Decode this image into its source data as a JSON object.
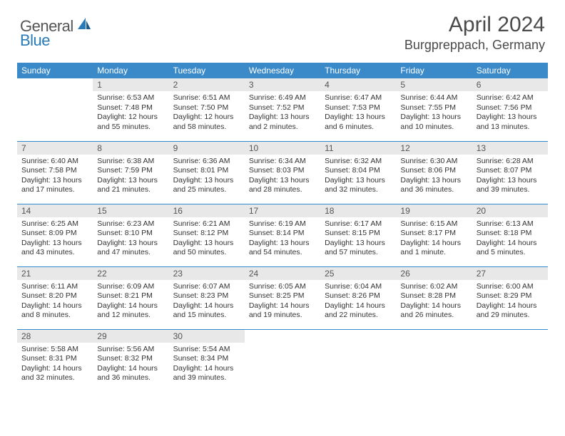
{
  "logo": {
    "general": "General",
    "blue": "Blue"
  },
  "title": "April 2024",
  "location": "Burgpreppach, Germany",
  "colors": {
    "header_bg": "#3a8ac9",
    "header_text": "#ffffff",
    "daynum_bg": "#e8e8e8",
    "border": "#3a8ac9",
    "logo_blue": "#2a7ab8",
    "text": "#333333"
  },
  "weekdays": [
    "Sunday",
    "Monday",
    "Tuesday",
    "Wednesday",
    "Thursday",
    "Friday",
    "Saturday"
  ],
  "weeks": [
    [
      {
        "num": "",
        "lines": []
      },
      {
        "num": "1",
        "lines": [
          "Sunrise: 6:53 AM",
          "Sunset: 7:48 PM",
          "Daylight: 12 hours",
          "and 55 minutes."
        ]
      },
      {
        "num": "2",
        "lines": [
          "Sunrise: 6:51 AM",
          "Sunset: 7:50 PM",
          "Daylight: 12 hours",
          "and 58 minutes."
        ]
      },
      {
        "num": "3",
        "lines": [
          "Sunrise: 6:49 AM",
          "Sunset: 7:52 PM",
          "Daylight: 13 hours",
          "and 2 minutes."
        ]
      },
      {
        "num": "4",
        "lines": [
          "Sunrise: 6:47 AM",
          "Sunset: 7:53 PM",
          "Daylight: 13 hours",
          "and 6 minutes."
        ]
      },
      {
        "num": "5",
        "lines": [
          "Sunrise: 6:44 AM",
          "Sunset: 7:55 PM",
          "Daylight: 13 hours",
          "and 10 minutes."
        ]
      },
      {
        "num": "6",
        "lines": [
          "Sunrise: 6:42 AM",
          "Sunset: 7:56 PM",
          "Daylight: 13 hours",
          "and 13 minutes."
        ]
      }
    ],
    [
      {
        "num": "7",
        "lines": [
          "Sunrise: 6:40 AM",
          "Sunset: 7:58 PM",
          "Daylight: 13 hours",
          "and 17 minutes."
        ]
      },
      {
        "num": "8",
        "lines": [
          "Sunrise: 6:38 AM",
          "Sunset: 7:59 PM",
          "Daylight: 13 hours",
          "and 21 minutes."
        ]
      },
      {
        "num": "9",
        "lines": [
          "Sunrise: 6:36 AM",
          "Sunset: 8:01 PM",
          "Daylight: 13 hours",
          "and 25 minutes."
        ]
      },
      {
        "num": "10",
        "lines": [
          "Sunrise: 6:34 AM",
          "Sunset: 8:03 PM",
          "Daylight: 13 hours",
          "and 28 minutes."
        ]
      },
      {
        "num": "11",
        "lines": [
          "Sunrise: 6:32 AM",
          "Sunset: 8:04 PM",
          "Daylight: 13 hours",
          "and 32 minutes."
        ]
      },
      {
        "num": "12",
        "lines": [
          "Sunrise: 6:30 AM",
          "Sunset: 8:06 PM",
          "Daylight: 13 hours",
          "and 36 minutes."
        ]
      },
      {
        "num": "13",
        "lines": [
          "Sunrise: 6:28 AM",
          "Sunset: 8:07 PM",
          "Daylight: 13 hours",
          "and 39 minutes."
        ]
      }
    ],
    [
      {
        "num": "14",
        "lines": [
          "Sunrise: 6:25 AM",
          "Sunset: 8:09 PM",
          "Daylight: 13 hours",
          "and 43 minutes."
        ]
      },
      {
        "num": "15",
        "lines": [
          "Sunrise: 6:23 AM",
          "Sunset: 8:10 PM",
          "Daylight: 13 hours",
          "and 47 minutes."
        ]
      },
      {
        "num": "16",
        "lines": [
          "Sunrise: 6:21 AM",
          "Sunset: 8:12 PM",
          "Daylight: 13 hours",
          "and 50 minutes."
        ]
      },
      {
        "num": "17",
        "lines": [
          "Sunrise: 6:19 AM",
          "Sunset: 8:14 PM",
          "Daylight: 13 hours",
          "and 54 minutes."
        ]
      },
      {
        "num": "18",
        "lines": [
          "Sunrise: 6:17 AM",
          "Sunset: 8:15 PM",
          "Daylight: 13 hours",
          "and 57 minutes."
        ]
      },
      {
        "num": "19",
        "lines": [
          "Sunrise: 6:15 AM",
          "Sunset: 8:17 PM",
          "Daylight: 14 hours",
          "and 1 minute."
        ]
      },
      {
        "num": "20",
        "lines": [
          "Sunrise: 6:13 AM",
          "Sunset: 8:18 PM",
          "Daylight: 14 hours",
          "and 5 minutes."
        ]
      }
    ],
    [
      {
        "num": "21",
        "lines": [
          "Sunrise: 6:11 AM",
          "Sunset: 8:20 PM",
          "Daylight: 14 hours",
          "and 8 minutes."
        ]
      },
      {
        "num": "22",
        "lines": [
          "Sunrise: 6:09 AM",
          "Sunset: 8:21 PM",
          "Daylight: 14 hours",
          "and 12 minutes."
        ]
      },
      {
        "num": "23",
        "lines": [
          "Sunrise: 6:07 AM",
          "Sunset: 8:23 PM",
          "Daylight: 14 hours",
          "and 15 minutes."
        ]
      },
      {
        "num": "24",
        "lines": [
          "Sunrise: 6:05 AM",
          "Sunset: 8:25 PM",
          "Daylight: 14 hours",
          "and 19 minutes."
        ]
      },
      {
        "num": "25",
        "lines": [
          "Sunrise: 6:04 AM",
          "Sunset: 8:26 PM",
          "Daylight: 14 hours",
          "and 22 minutes."
        ]
      },
      {
        "num": "26",
        "lines": [
          "Sunrise: 6:02 AM",
          "Sunset: 8:28 PM",
          "Daylight: 14 hours",
          "and 26 minutes."
        ]
      },
      {
        "num": "27",
        "lines": [
          "Sunrise: 6:00 AM",
          "Sunset: 8:29 PM",
          "Daylight: 14 hours",
          "and 29 minutes."
        ]
      }
    ],
    [
      {
        "num": "28",
        "lines": [
          "Sunrise: 5:58 AM",
          "Sunset: 8:31 PM",
          "Daylight: 14 hours",
          "and 32 minutes."
        ]
      },
      {
        "num": "29",
        "lines": [
          "Sunrise: 5:56 AM",
          "Sunset: 8:32 PM",
          "Daylight: 14 hours",
          "and 36 minutes."
        ]
      },
      {
        "num": "30",
        "lines": [
          "Sunrise: 5:54 AM",
          "Sunset: 8:34 PM",
          "Daylight: 14 hours",
          "and 39 minutes."
        ]
      },
      {
        "num": "",
        "lines": []
      },
      {
        "num": "",
        "lines": []
      },
      {
        "num": "",
        "lines": []
      },
      {
        "num": "",
        "lines": []
      }
    ]
  ]
}
